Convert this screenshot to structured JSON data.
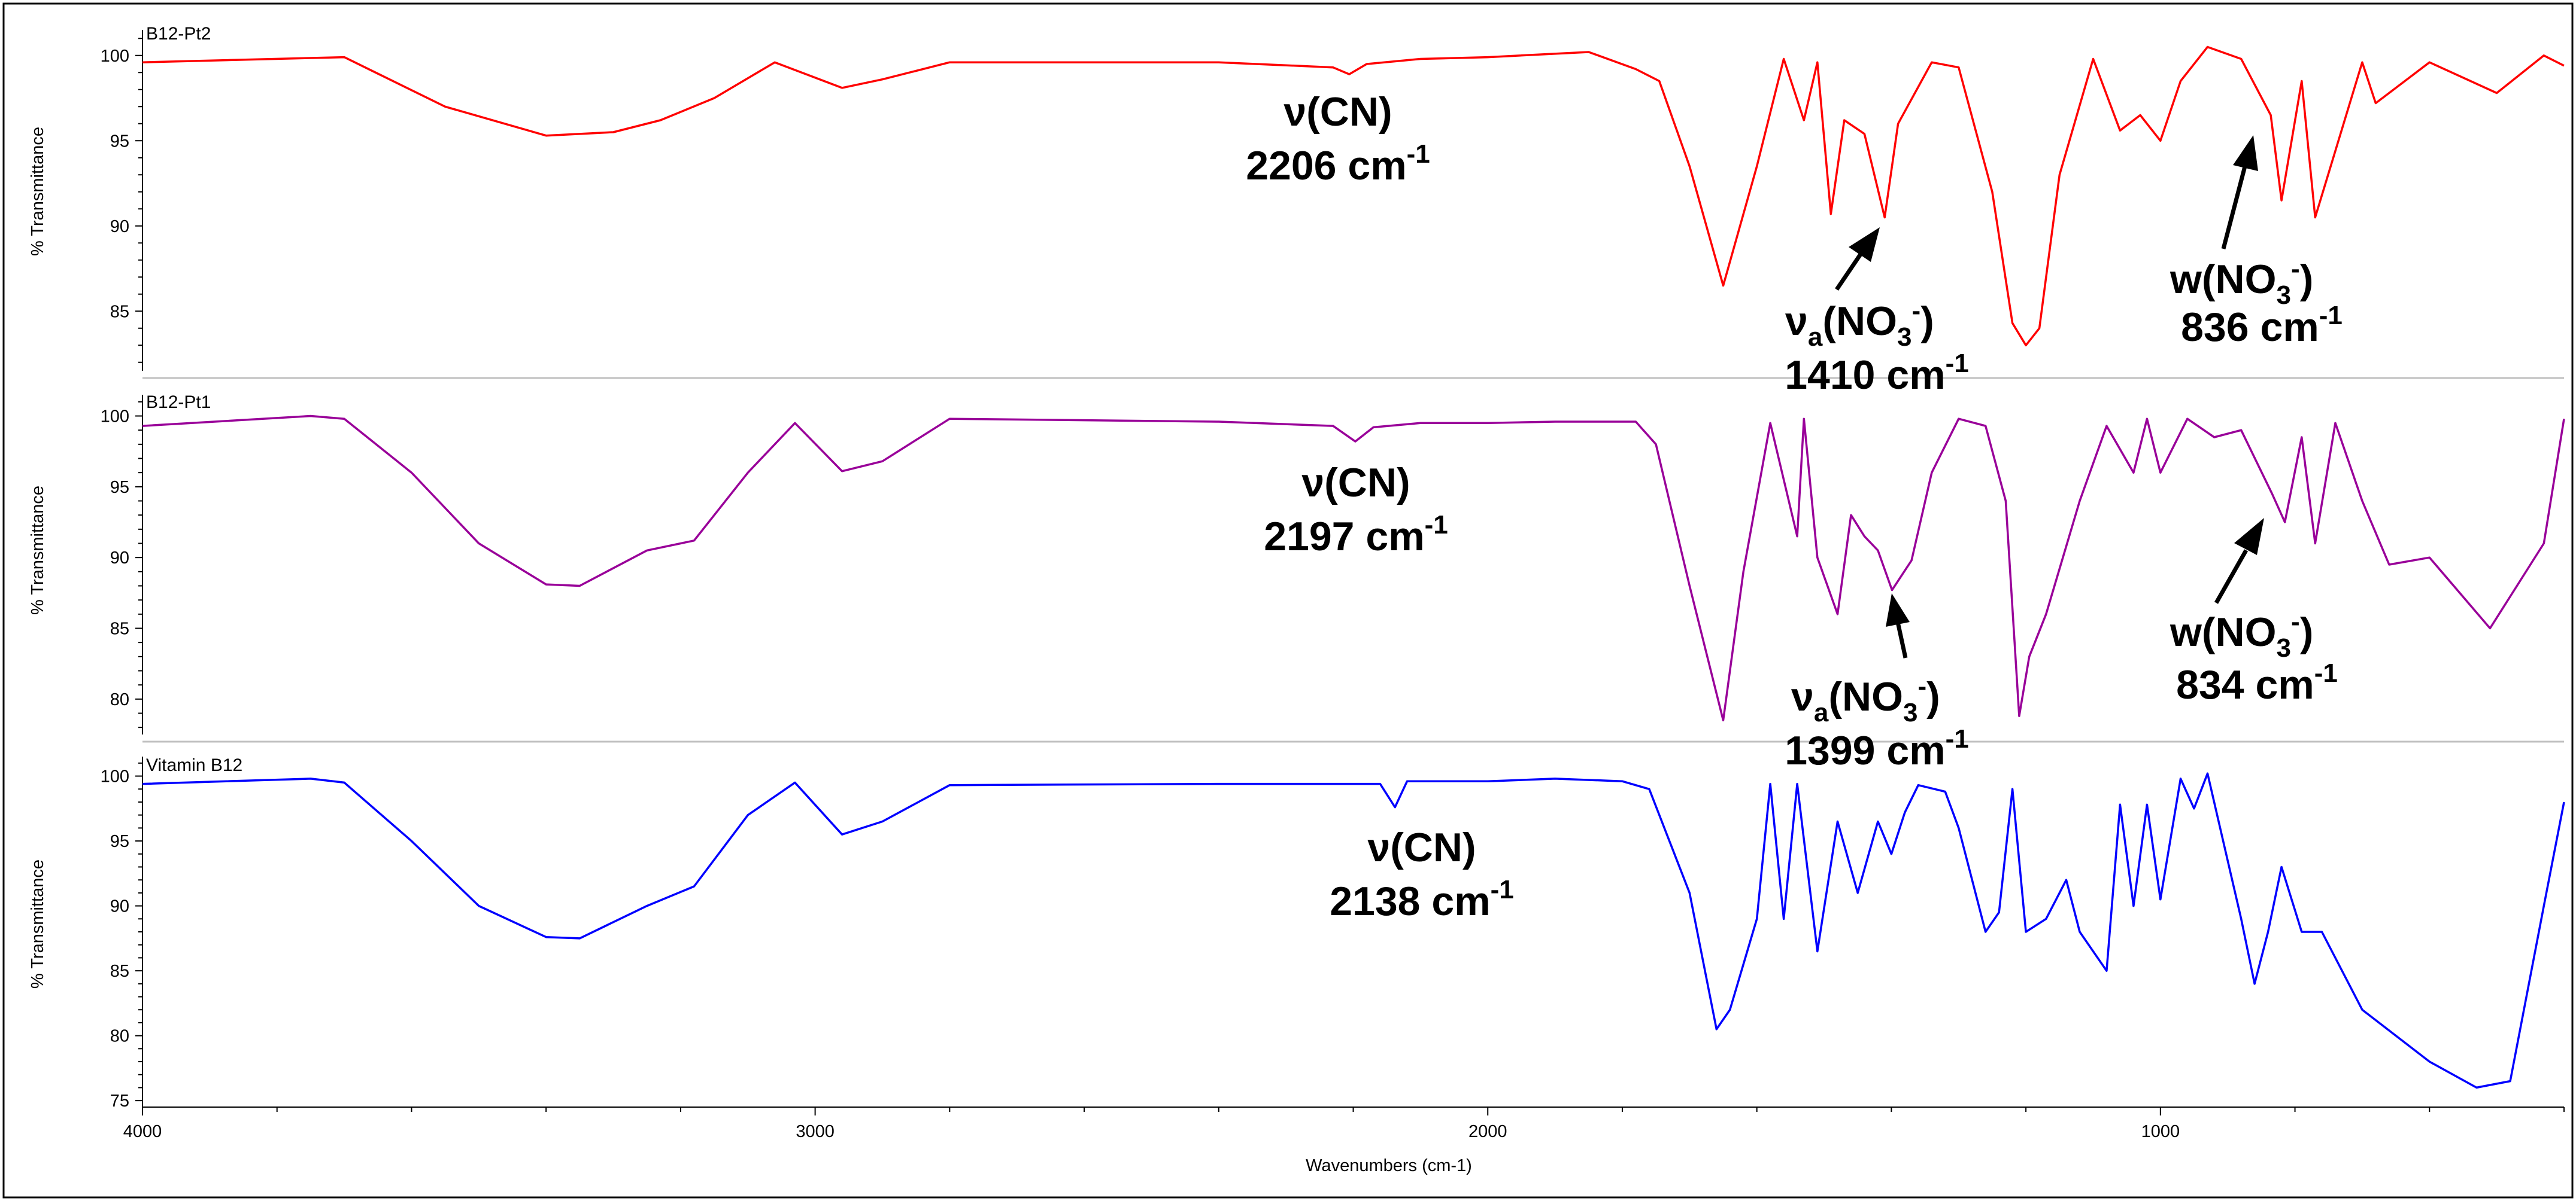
{
  "chart_data": {
    "type": "line",
    "xlabel": "Wavenumbers (cm-1)",
    "xlim": [
      4000,
      400
    ],
    "x_ticks": [
      "4000",
      "3000",
      "2000",
      "1000"
    ],
    "grid": false,
    "legend": "none",
    "panels": [
      {
        "title": "B12-Pt2",
        "ylabel": "% Transmittance",
        "ylim": [
          81.5,
          101.5
        ],
        "y_ticks": [
          "85",
          "90",
          "95",
          "100"
        ],
        "color": "#ff0000",
        "series": [
          {
            "x": [
              4000,
              3700,
              3550,
              3400,
              3300,
              3230,
              3150,
              3060,
              2960,
              2900,
              2800,
              2400,
              2230,
              2206,
              2180,
              2100,
              2000,
              1850,
              1780,
              1745,
              1700,
              1650,
              1600,
              1560,
              1530,
              1510,
              1490,
              1470,
              1440,
              1410,
              1390,
              1340,
              1300,
              1250,
              1220,
              1200,
              1180,
              1150,
              1100,
              1060,
              1030,
              1000,
              970,
              930,
              880,
              836,
              820,
              790,
              770,
              700,
              680,
              600,
              500,
              430,
              400
            ],
            "y": [
              99.6,
              99.9,
              97,
              95.3,
              95.5,
              96.2,
              97.5,
              99.6,
              98.1,
              98.6,
              99.6,
              99.6,
              99.3,
              98.9,
              99.5,
              99.8,
              99.9,
              100.2,
              99.2,
              98.5,
              93.5,
              86.5,
              93.5,
              99.8,
              96.2,
              99.6,
              90.7,
              96.2,
              95.4,
              90.5,
              96,
              99.6,
              99.3,
              92,
              84.3,
              83,
              84,
              93,
              99.8,
              95.6,
              96.5,
              95,
              98.5,
              100.5,
              99.8,
              96.5,
              91.5,
              98.5,
              90.5,
              99.6,
              97.2,
              99.6,
              97.8,
              100,
              99.4
            ]
          }
        ]
      },
      {
        "title": "B12-Pt1",
        "ylabel": "% Transmittance",
        "ylim": [
          77.5,
          101.5
        ],
        "y_ticks": [
          "80",
          "85",
          "90",
          "95",
          "100"
        ],
        "color": "#990099",
        "series": [
          {
            "x": [
              4000,
              3750,
              3700,
              3600,
              3500,
              3400,
              3350,
              3250,
              3180,
              3100,
              3030,
              2960,
              2900,
              2800,
              2400,
              2230,
              2197,
              2170,
              2100,
              2000,
              1900,
              1780,
              1750,
              1700,
              1650,
              1620,
              1580,
              1540,
              1530,
              1510,
              1480,
              1460,
              1440,
              1420,
              1399,
              1370,
              1340,
              1300,
              1260,
              1230,
              1210,
              1195,
              1170,
              1120,
              1080,
              1040,
              1020,
              1000,
              960,
              920,
              880,
              834,
              815,
              790,
              770,
              740,
              700,
              660,
              600,
              510,
              430,
              400
            ],
            "y": [
              99.3,
              100,
              99.8,
              96,
              91,
              88.1,
              88,
              90.5,
              91.2,
              96,
              99.5,
              96.1,
              96.8,
              99.8,
              99.6,
              99.3,
              98.2,
              99.2,
              99.5,
              99.5,
              99.6,
              99.6,
              98,
              88,
              78.5,
              89,
              99.5,
              91.5,
              99.8,
              90,
              86,
              93,
              91.5,
              90.5,
              87.7,
              89.8,
              96,
              99.8,
              99.3,
              94,
              78.8,
              83,
              86,
              94,
              99.3,
              96,
              99.8,
              96,
              99.8,
              98.5,
              99,
              94.5,
              92.5,
              98.5,
              91,
              99.5,
              94,
              89.5,
              90,
              85,
              91,
              99.8
            ]
          }
        ]
      },
      {
        "title": "Vitamin B12",
        "ylabel": "% Transmittance",
        "ylim": [
          74.5,
          101.5
        ],
        "y_ticks": [
          "75",
          "80",
          "85",
          "90",
          "95",
          "100"
        ],
        "color": "#0000ff",
        "series": [
          {
            "x": [
              4000,
              3750,
              3700,
              3600,
              3500,
              3400,
              3350,
              3250,
              3180,
              3100,
              3030,
              2960,
              2900,
              2800,
              2400,
              2160,
              2138,
              2120,
              2000,
              1900,
              1800,
              1760,
              1700,
              1660,
              1640,
              1600,
              1580,
              1560,
              1540,
              1510,
              1480,
              1450,
              1420,
              1400,
              1380,
              1360,
              1320,
              1300,
              1260,
              1240,
              1220,
              1200,
              1170,
              1140,
              1120,
              1080,
              1060,
              1040,
              1020,
              1000,
              970,
              950,
              930,
              880,
              860,
              840,
              820,
              790,
              760,
              700,
              600,
              530,
              480,
              430,
              400
            ],
            "y": [
              99.4,
              99.8,
              99.5,
              95,
              90,
              87.6,
              87.5,
              90,
              91.5,
              97,
              99.5,
              95.5,
              96.5,
              99.3,
              99.4,
              99.4,
              97.6,
              99.6,
              99.6,
              99.8,
              99.6,
              99,
              91,
              80.5,
              82,
              89,
              99.4,
              89,
              99.4,
              86.5,
              96.5,
              91,
              96.5,
              94,
              97.2,
              99.3,
              98.8,
              96,
              88,
              89.5,
              99,
              88,
              89,
              92,
              88,
              85,
              97.8,
              90,
              97.8,
              90.5,
              99.8,
              97.5,
              100.2,
              89,
              84,
              88,
              93,
              88,
              88,
              82,
              78,
              76,
              76.5,
              90,
              98
            ]
          }
        ]
      }
    ],
    "annotations": [
      {
        "label": "ν(CN)",
        "value": "2206 cm",
        "sup": "-1"
      },
      {
        "label": "ν",
        "sub": "a",
        "group": "(NO",
        "sub2": "3",
        "sup2": "-",
        "close": ")",
        "value": "1410 cm",
        "sup": "-1"
      },
      {
        "label": "w(NO",
        "sub2": "3",
        "sup2": "-",
        "close": ")",
        "value": "836 cm",
        "sup": "-1"
      },
      {
        "label": "ν(CN)",
        "value": "2197 cm",
        "sup": "-1"
      },
      {
        "label": "ν",
        "sub": "a",
        "group": "(NO",
        "sub2": "3",
        "sup2": "-",
        "close": ")",
        "value": "1399 cm",
        "sup": "-1"
      },
      {
        "label": "w(NO",
        "sub2": "3",
        "sup2": "-",
        "close": ")",
        "value": "834 cm",
        "sup": "-1"
      },
      {
        "label": "ν(CN)",
        "value": "2138 cm",
        "sup": "-1"
      }
    ]
  }
}
